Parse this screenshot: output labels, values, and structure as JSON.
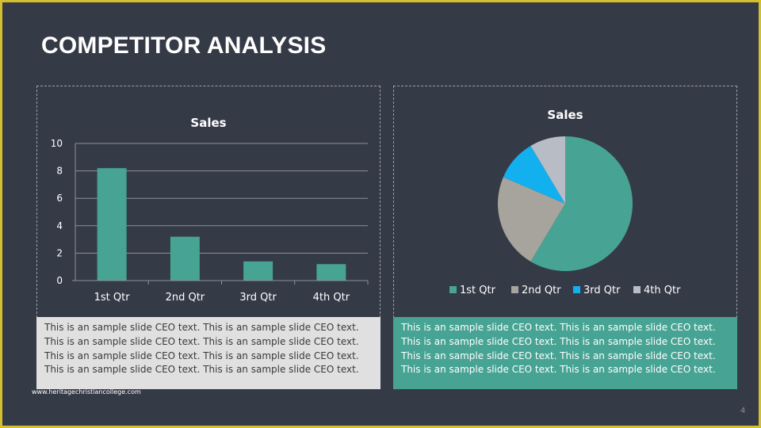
{
  "slide": {
    "title": "COMPETITOR ANALYSIS",
    "page_number": "4",
    "footer_url": "www.heritagechristiancollege.com"
  },
  "colors": {
    "background": "#353a47",
    "frame": "#d4bf2e",
    "teal": "#47a393",
    "gray_text_box": "#e0e0e0"
  },
  "text_boxes": {
    "left": {
      "lines": [
        "This is an sample slide  CEO text. This is an sample  slide CEO text.",
        "This is an sample slide  CEO text. This is an sample  slide CEO text.",
        "This is an sample slide  CEO text. This is an sample  slide CEO text.",
        "This is an sample slide  CEO text. This is an sample  slide CEO text."
      ]
    },
    "right": {
      "lines": [
        "This is an sample slide  CEO text. This is an sample  slide CEO text.",
        "This is an sample slide  CEO text. This is an sample  slide CEO text.",
        "This is an sample slide  CEO text. This is an sample  slide CEO text.",
        "This is an sample slide  CEO text. This is an sample  slide CEO text."
      ]
    }
  },
  "chart_data": [
    {
      "type": "bar",
      "title": "Sales",
      "categories": [
        "1st Qtr",
        "2nd Qtr",
        "3rd Qtr",
        "4th Qtr"
      ],
      "values": [
        8.2,
        3.2,
        1.4,
        1.2
      ],
      "ylim": [
        0,
        10
      ],
      "yticks": [
        "0",
        "2",
        "4",
        "6",
        "8",
        "10"
      ],
      "grid": true,
      "legend": "none",
      "color": "#47a393"
    },
    {
      "type": "pie",
      "title": "Sales",
      "categories": [
        "1st Qtr",
        "2nd Qtr",
        "3rd Qtr",
        "4th Qtr"
      ],
      "values": [
        8.2,
        3.2,
        1.4,
        1.2
      ],
      "colors": [
        "#47a393",
        "#a7a49e",
        "#12b0ee",
        "#b8bcc4"
      ],
      "legend": "bottom"
    }
  ]
}
